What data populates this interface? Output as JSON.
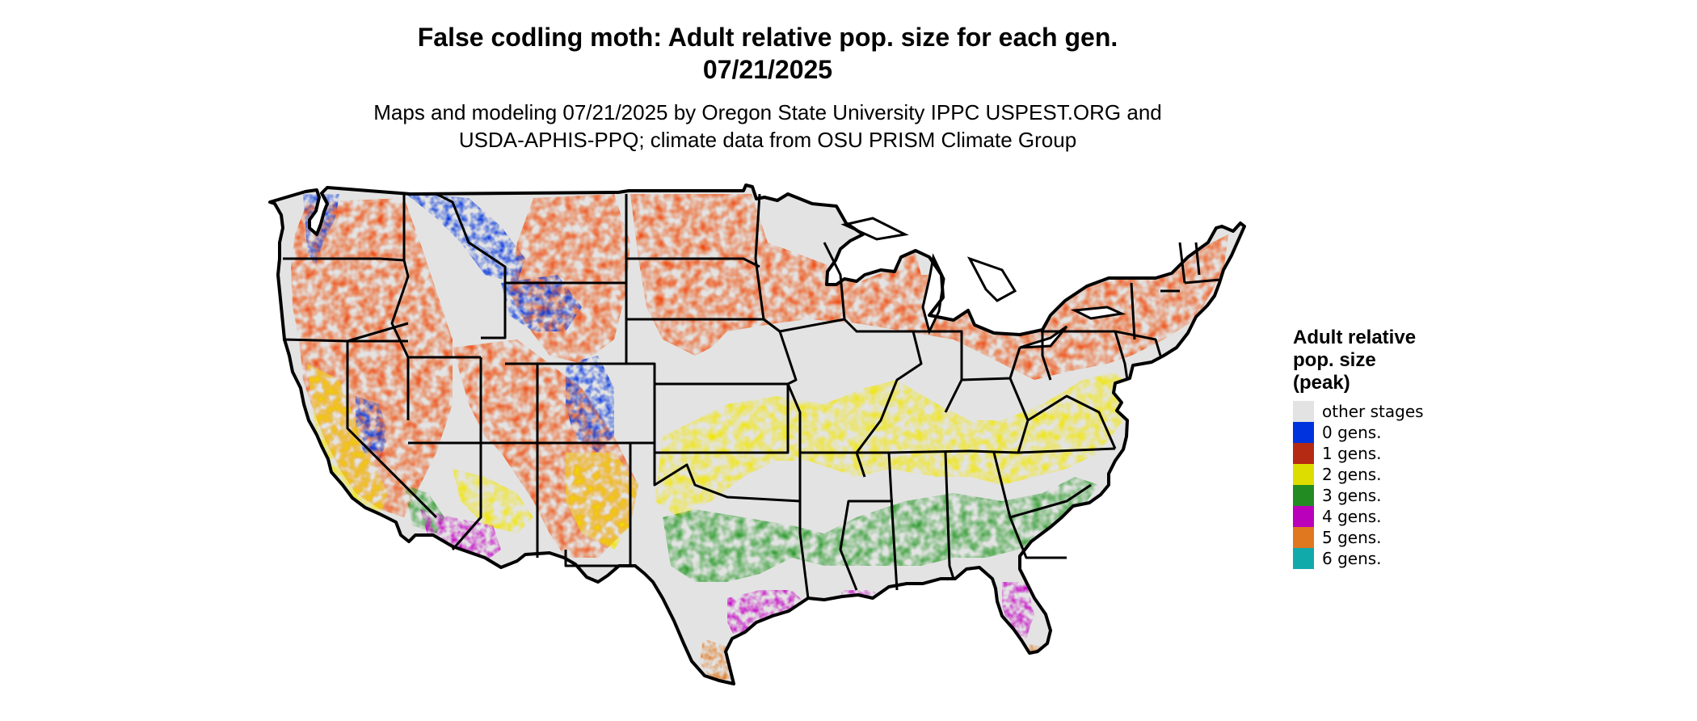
{
  "header": {
    "title_line1": "False codling moth: Adult relative pop. size for each gen.",
    "title_line2": "07/21/2025",
    "subtitle_line1": "Maps and modeling 07/21/2025 by Oregon State University IPPC USPEST.ORG and",
    "subtitle_line2": "USDA-APHIS-PPQ; climate data from OSU PRISM Climate Group"
  },
  "legend": {
    "title_line1": "Adult relative",
    "title_line2": "pop. size",
    "title_line3": "(peak)",
    "items": [
      {
        "label": "other stages",
        "color": "#e3e3e3"
      },
      {
        "label": "0 gens.",
        "color": "#0033dd"
      },
      {
        "label": "1 gens.",
        "color": "#b52a12"
      },
      {
        "label": "2 gens.",
        "color": "#dddd00"
      },
      {
        "label": "3 gens.",
        "color": "#228b22"
      },
      {
        "label": "4 gens.",
        "color": "#bb00bb"
      },
      {
        "label": "5 gens.",
        "color": "#e07820"
      },
      {
        "label": "6 gens.",
        "color": "#11aaaa"
      }
    ]
  },
  "map": {
    "region": "Contiguous United States",
    "colors": {
      "other": "#e3e3e3",
      "gen0": "#0033dd",
      "gen0_light": "#2a8cf0",
      "gen1": "#b52a12",
      "gen1_bright": "#f04a0a",
      "gen2": "#f2e600",
      "gen3": "#2a9a2a",
      "gen4": "#c400c4",
      "gen5": "#e07820",
      "border": "#000000",
      "water": "#ffffff"
    }
  }
}
